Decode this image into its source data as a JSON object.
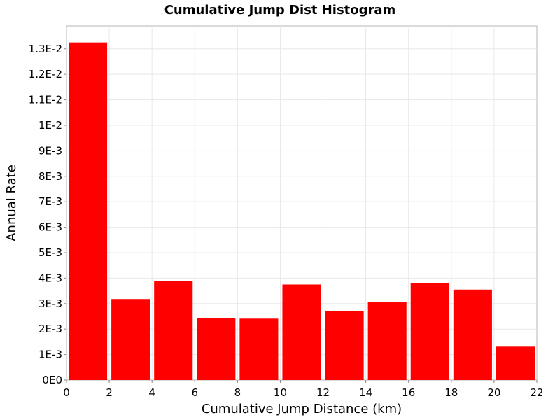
{
  "chart_data": {
    "type": "bar",
    "title": "Cumulative Jump Dist Histogram",
    "xlabel": "Cumulative Jump Distance (km)",
    "ylabel": "Annual Rate",
    "xlim": [
      0,
      22
    ],
    "ylim": [
      0,
      0.0139
    ],
    "x_ticks": [
      {
        "value": 0,
        "label": "0"
      },
      {
        "value": 2,
        "label": "2"
      },
      {
        "value": 4,
        "label": "4"
      },
      {
        "value": 6,
        "label": "6"
      },
      {
        "value": 8,
        "label": "8"
      },
      {
        "value": 10,
        "label": "10"
      },
      {
        "value": 12,
        "label": "12"
      },
      {
        "value": 14,
        "label": "14"
      },
      {
        "value": 16,
        "label": "16"
      },
      {
        "value": 18,
        "label": "18"
      },
      {
        "value": 20,
        "label": "20"
      },
      {
        "value": 22,
        "label": "22"
      }
    ],
    "y_ticks": [
      {
        "value": 0,
        "label": "0E0"
      },
      {
        "value": 0.001,
        "label": "1E-3"
      },
      {
        "value": 0.002,
        "label": "2E-3"
      },
      {
        "value": 0.003,
        "label": "3E-3"
      },
      {
        "value": 0.004,
        "label": "4E-3"
      },
      {
        "value": 0.005,
        "label": "5E-3"
      },
      {
        "value": 0.006,
        "label": "6E-3"
      },
      {
        "value": 0.007,
        "label": "7E-3"
      },
      {
        "value": 0.008,
        "label": "8E-3"
      },
      {
        "value": 0.009,
        "label": "9E-3"
      },
      {
        "value": 0.01,
        "label": "1E-2"
      },
      {
        "value": 0.011,
        "label": "1.1E-2"
      },
      {
        "value": 0.012,
        "label": "1.2E-2"
      },
      {
        "value": 0.013,
        "label": "1.3E-2"
      }
    ],
    "bars": [
      {
        "x_start": 0,
        "x_end": 2,
        "value": 0.01325
      },
      {
        "x_start": 2,
        "x_end": 4,
        "value": 0.00318
      },
      {
        "x_start": 4,
        "x_end": 6,
        "value": 0.0039
      },
      {
        "x_start": 6,
        "x_end": 8,
        "value": 0.00243
      },
      {
        "x_start": 8,
        "x_end": 10,
        "value": 0.00241
      },
      {
        "x_start": 10,
        "x_end": 12,
        "value": 0.00375
      },
      {
        "x_start": 12,
        "x_end": 14,
        "value": 0.00272
      },
      {
        "x_start": 14,
        "x_end": 16,
        "value": 0.00307
      },
      {
        "x_start": 16,
        "x_end": 18,
        "value": 0.00381
      },
      {
        "x_start": 18,
        "x_end": 20,
        "value": 0.00355
      },
      {
        "x_start": 20,
        "x_end": 22,
        "value": 0.00131
      }
    ],
    "bar_color": "#ff0000",
    "grid": true,
    "legend": "none"
  }
}
